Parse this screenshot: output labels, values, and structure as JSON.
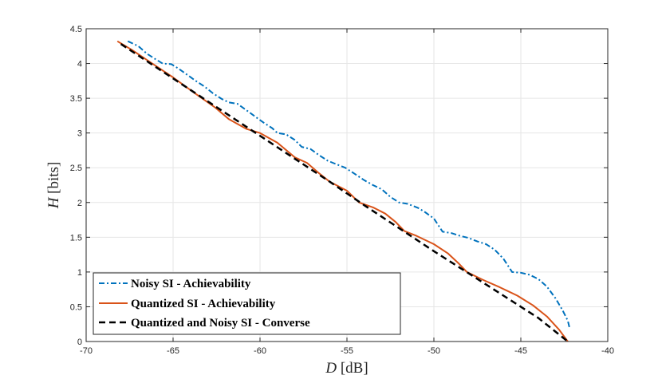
{
  "chart_data": {
    "type": "line",
    "title": "",
    "xlabel": {
      "var": "D",
      "unit": " [dB]"
    },
    "ylabel": {
      "var": "H",
      "unit": " [bits]"
    },
    "xlim": [
      -70,
      -40
    ],
    "ylim": [
      0,
      4.5
    ],
    "xticks": [
      -70,
      -65,
      -60,
      -55,
      -50,
      -45,
      -40
    ],
    "yticks": [
      0,
      0.5,
      1,
      1.5,
      2,
      2.5,
      3,
      3.5,
      4,
      4.5
    ],
    "grid": true,
    "legend_position": "bottom-left",
    "series": [
      {
        "name": "Noisy SI - Achievability",
        "color": "#0072BD",
        "style": "dash-dot",
        "points": [
          [
            -67.6,
            4.32
          ],
          [
            -67.0,
            4.25
          ],
          [
            -66.5,
            4.14
          ],
          [
            -66.0,
            4.06
          ],
          [
            -65.6,
            4.0
          ],
          [
            -65.1,
            3.99
          ],
          [
            -64.7,
            3.93
          ],
          [
            -64.2,
            3.84
          ],
          [
            -63.7,
            3.75
          ],
          [
            -63.2,
            3.67
          ],
          [
            -62.7,
            3.57
          ],
          [
            -62.2,
            3.49
          ],
          [
            -61.8,
            3.44
          ],
          [
            -61.3,
            3.42
          ],
          [
            -60.8,
            3.33
          ],
          [
            -60.3,
            3.24
          ],
          [
            -59.8,
            3.15
          ],
          [
            -59.3,
            3.07
          ],
          [
            -59.0,
            3.0
          ],
          [
            -58.5,
            2.98
          ],
          [
            -58.0,
            2.9
          ],
          [
            -57.6,
            2.8
          ],
          [
            -57.1,
            2.77
          ],
          [
            -56.6,
            2.68
          ],
          [
            -56.1,
            2.6
          ],
          [
            -55.6,
            2.55
          ],
          [
            -55.1,
            2.5
          ],
          [
            -54.6,
            2.42
          ],
          [
            -54.0,
            2.32
          ],
          [
            -53.5,
            2.25
          ],
          [
            -53.0,
            2.19
          ],
          [
            -52.5,
            2.08
          ],
          [
            -52.0,
            2.0
          ],
          [
            -51.5,
            1.98
          ],
          [
            -50.9,
            1.92
          ],
          [
            -50.5,
            1.86
          ],
          [
            -50.0,
            1.77
          ],
          [
            -49.5,
            1.58
          ],
          [
            -49.0,
            1.56
          ],
          [
            -48.5,
            1.52
          ],
          [
            -48.0,
            1.49
          ],
          [
            -47.5,
            1.44
          ],
          [
            -47.0,
            1.4
          ],
          [
            -46.5,
            1.32
          ],
          [
            -46.0,
            1.19
          ],
          [
            -45.5,
            1.0
          ],
          [
            -45.0,
            0.99
          ],
          [
            -44.5,
            0.96
          ],
          [
            -44.0,
            0.9
          ],
          [
            -43.5,
            0.79
          ],
          [
            -43.0,
            0.62
          ],
          [
            -42.6,
            0.45
          ],
          [
            -42.3,
            0.3
          ],
          [
            -42.2,
            0.2
          ]
        ]
      },
      {
        "name": "Quantized SI - Achievability",
        "color": "#D95319",
        "style": "solid",
        "points": [
          [
            -68.2,
            4.32
          ],
          [
            -67.4,
            4.2
          ],
          [
            -66.2,
            4.0
          ],
          [
            -65.0,
            3.8
          ],
          [
            -63.8,
            3.58
          ],
          [
            -62.6,
            3.37
          ],
          [
            -61.8,
            3.2
          ],
          [
            -60.8,
            3.06
          ],
          [
            -60.0,
            3.0
          ],
          [
            -59.0,
            2.86
          ],
          [
            -58.0,
            2.65
          ],
          [
            -57.3,
            2.57
          ],
          [
            -56.6,
            2.42
          ],
          [
            -56.0,
            2.3
          ],
          [
            -55.0,
            2.17
          ],
          [
            -54.3,
            2.0
          ],
          [
            -53.5,
            1.93
          ],
          [
            -52.8,
            1.84
          ],
          [
            -52.2,
            1.72
          ],
          [
            -51.7,
            1.59
          ],
          [
            -51.0,
            1.52
          ],
          [
            -50.0,
            1.4
          ],
          [
            -49.2,
            1.27
          ],
          [
            -48.6,
            1.13
          ],
          [
            -48.1,
            1.0
          ],
          [
            -47.2,
            0.89
          ],
          [
            -46.2,
            0.78
          ],
          [
            -45.2,
            0.66
          ],
          [
            -44.3,
            0.52
          ],
          [
            -43.5,
            0.36
          ],
          [
            -42.8,
            0.17
          ],
          [
            -42.3,
            0.0
          ]
        ]
      },
      {
        "name": "Quantized and Noisy SI - Converse",
        "color": "#000000",
        "style": "dashed",
        "points": [
          [
            -68.0,
            4.28
          ],
          [
            -66.0,
            3.95
          ],
          [
            -64.0,
            3.62
          ],
          [
            -62.0,
            3.29
          ],
          [
            -60.0,
            2.96
          ],
          [
            -58.0,
            2.63
          ],
          [
            -56.0,
            2.3
          ],
          [
            -54.0,
            1.96
          ],
          [
            -52.0,
            1.63
          ],
          [
            -50.0,
            1.3
          ],
          [
            -48.0,
            0.98
          ],
          [
            -46.0,
            0.66
          ],
          [
            -44.0,
            0.34
          ],
          [
            -42.3,
            0.0
          ]
        ]
      }
    ]
  }
}
